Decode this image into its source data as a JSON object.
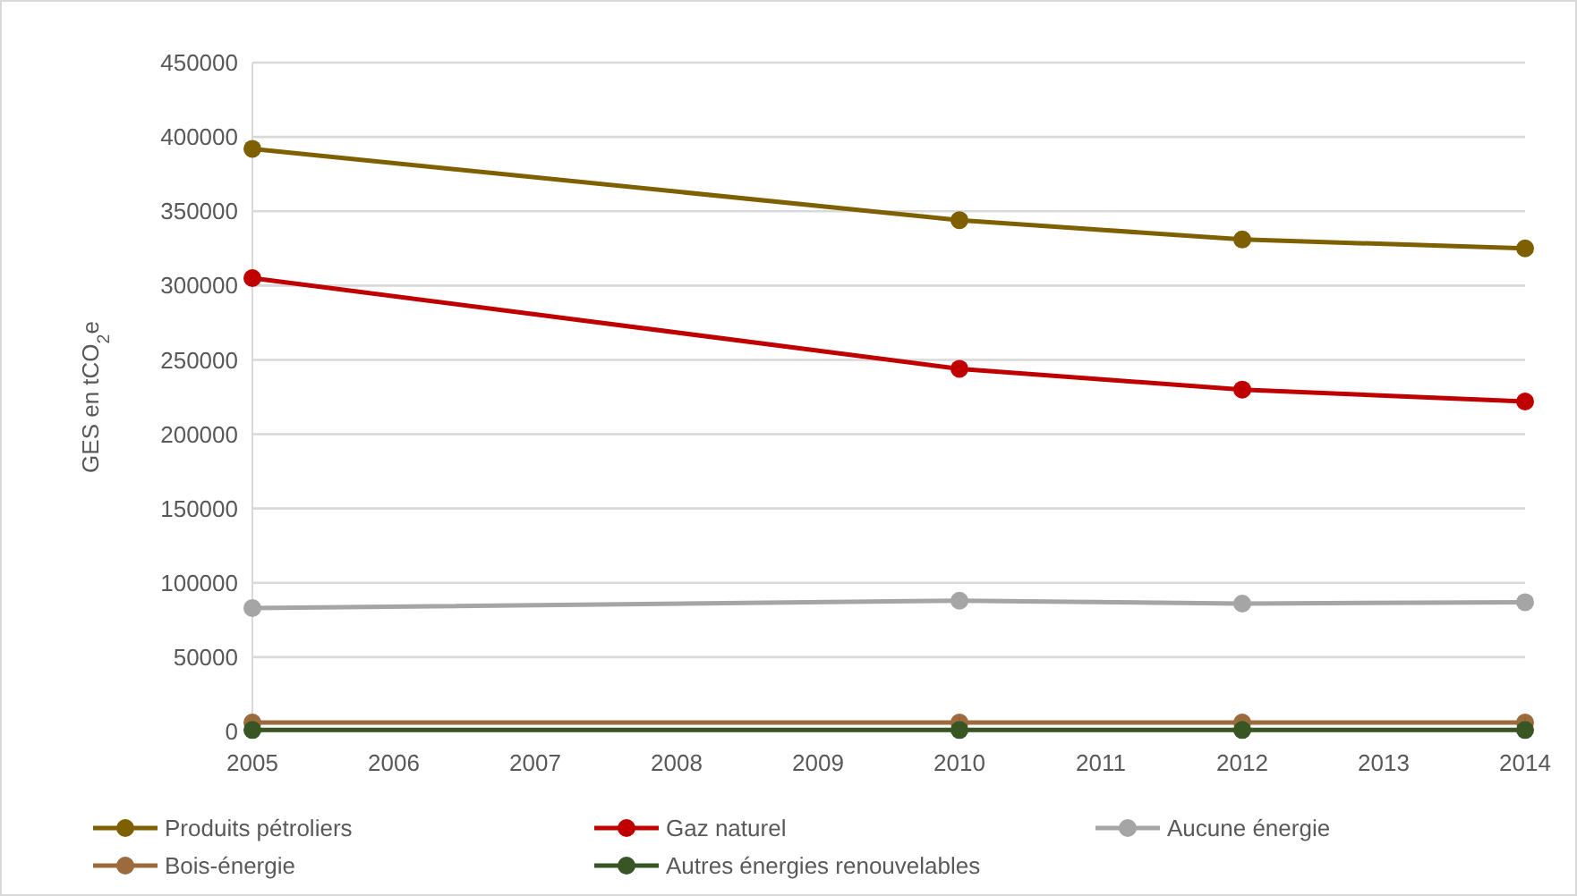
{
  "chart_data": {
    "type": "line",
    "ylabel": "GES en tCO$_{2}$e",
    "x": [
      2005,
      2010,
      2012,
      2014
    ],
    "series": [
      {
        "name": "Produits pétroliers",
        "color": "#7f6000",
        "values": [
          392000,
          344000,
          331000,
          325000
        ]
      },
      {
        "name": "Gaz naturel",
        "color": "#c00000",
        "values": [
          305000,
          244000,
          230000,
          222000
        ]
      },
      {
        "name": "Aucune énergie",
        "color": "#a5a5a5",
        "values": [
          83000,
          88000,
          86000,
          87000
        ]
      },
      {
        "name": "Bois-énergie",
        "color": "#9c6a3c",
        "values": [
          6000,
          6000,
          6000,
          6000
        ]
      },
      {
        "name": "Autres énergies renouvelables",
        "color": "#375623",
        "values": [
          1000,
          1000,
          1000,
          1000
        ]
      }
    ],
    "xlim": [
      2005,
      2014
    ],
    "xticks": [
      2005,
      2006,
      2007,
      2008,
      2009,
      2010,
      2011,
      2012,
      2013,
      2014
    ],
    "ylim": [
      0,
      450000
    ],
    "yticks": [
      0,
      50000,
      100000,
      150000,
      200000,
      250000,
      300000,
      350000,
      400000,
      450000
    ],
    "grid": "y",
    "legend": "bottom",
    "marker": "circle",
    "line_style": "solid"
  }
}
